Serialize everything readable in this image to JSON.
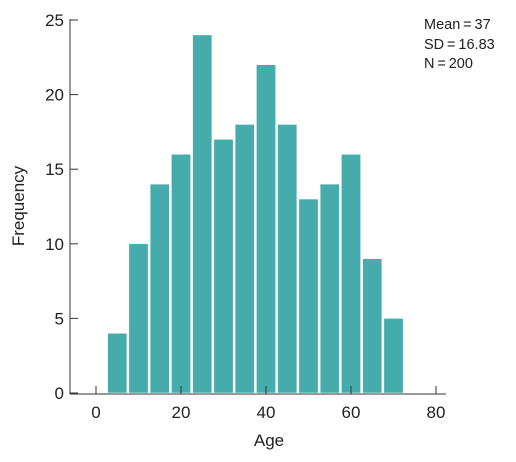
{
  "chart_data": {
    "type": "bar",
    "xlabel": "Age",
    "ylabel": "Frequency",
    "xlim": [
      0,
      80
    ],
    "ylim": [
      0,
      25
    ],
    "xticks": [
      0,
      20,
      40,
      60,
      80
    ],
    "yticks": [
      0,
      5,
      10,
      15,
      20,
      25
    ],
    "bin_width": 5,
    "bins": [
      {
        "start": 2.5,
        "end": 7.5,
        "value": 4
      },
      {
        "start": 7.5,
        "end": 12.5,
        "value": 10
      },
      {
        "start": 12.5,
        "end": 17.5,
        "value": 14
      },
      {
        "start": 17.5,
        "end": 22.5,
        "value": 16
      },
      {
        "start": 22.5,
        "end": 27.5,
        "value": 24
      },
      {
        "start": 27.5,
        "end": 32.5,
        "value": 17
      },
      {
        "start": 32.5,
        "end": 37.5,
        "value": 18
      },
      {
        "start": 37.5,
        "end": 42.5,
        "value": 22
      },
      {
        "start": 42.5,
        "end": 47.5,
        "value": 18
      },
      {
        "start": 47.5,
        "end": 52.5,
        "value": 13
      },
      {
        "start": 52.5,
        "end": 57.5,
        "value": 14
      },
      {
        "start": 57.5,
        "end": 62.5,
        "value": 16
      },
      {
        "start": 62.5,
        "end": 67.5,
        "value": 9
      },
      {
        "start": 67.5,
        "end": 72.5,
        "value": 5
      }
    ],
    "bar_color": "#45abab",
    "bar_edge_color": "#ffffff",
    "grid": false
  },
  "stats": {
    "mean": "Mean = 37",
    "sd": "SD = 16.83",
    "n": "N = 200"
  }
}
